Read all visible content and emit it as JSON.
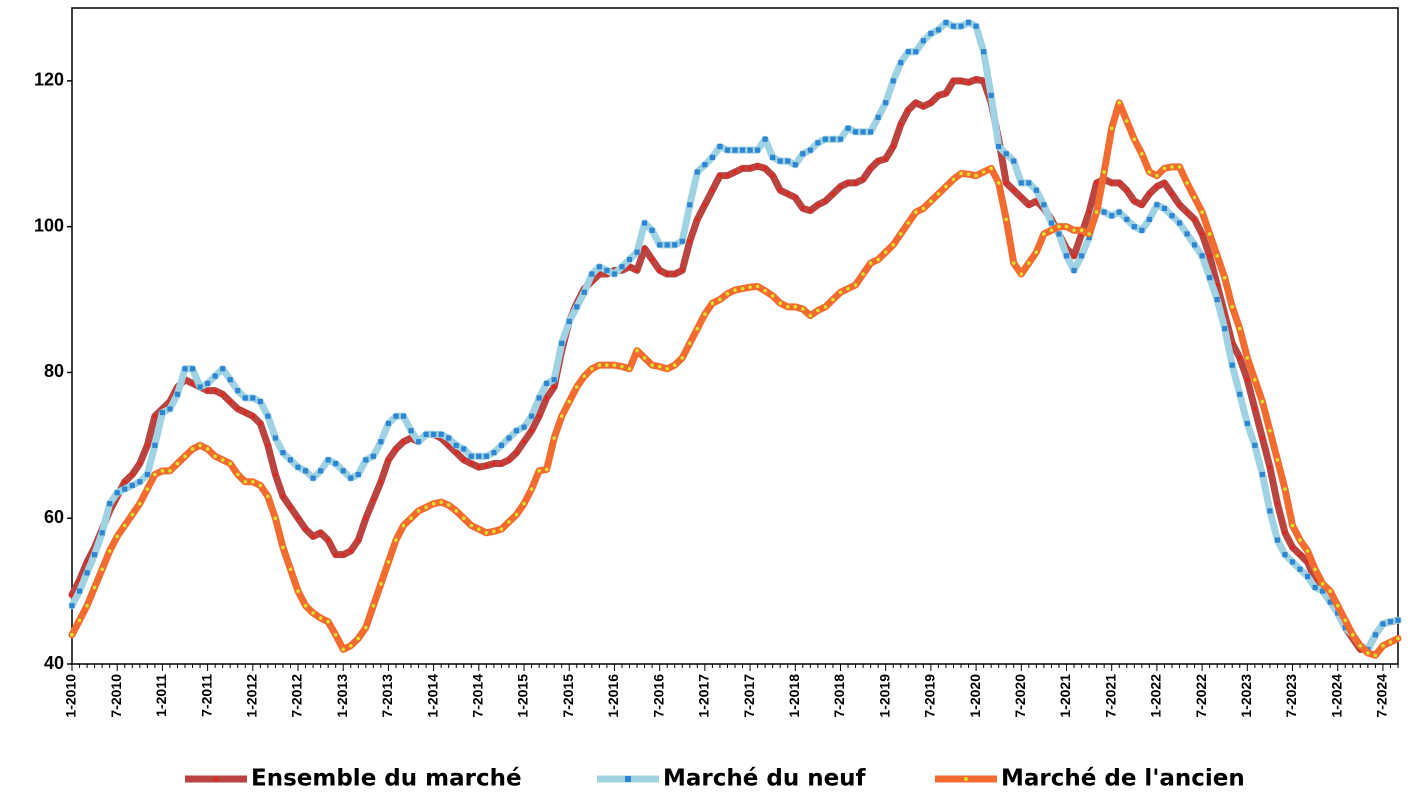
{
  "chart_data": {
    "type": "line",
    "categories": [
      "1-2010",
      null,
      null,
      null,
      null,
      null,
      "7-2010",
      null,
      null,
      null,
      null,
      null,
      "1-2011",
      null,
      null,
      null,
      null,
      null,
      "7-2011",
      null,
      null,
      null,
      null,
      null,
      "1-2012",
      null,
      null,
      null,
      null,
      null,
      "7-2012",
      null,
      null,
      null,
      null,
      null,
      "1-2013",
      null,
      null,
      null,
      null,
      null,
      "7-2013",
      null,
      null,
      null,
      null,
      null,
      "1-2014",
      null,
      null,
      null,
      null,
      null,
      "7-2014",
      null,
      null,
      null,
      null,
      null,
      "1-2015",
      null,
      null,
      null,
      null,
      null,
      "7-2015",
      null,
      null,
      null,
      null,
      null,
      "1-2016",
      null,
      null,
      null,
      null,
      null,
      "7-2016",
      null,
      null,
      null,
      null,
      null,
      "1-2017",
      null,
      null,
      null,
      null,
      null,
      "7-2017",
      null,
      null,
      null,
      null,
      null,
      "1-2018",
      null,
      null,
      null,
      null,
      null,
      "7-2018",
      null,
      null,
      null,
      null,
      null,
      "1-2019",
      null,
      null,
      null,
      null,
      null,
      "7-2019",
      null,
      null,
      null,
      null,
      null,
      "1-2020",
      null,
      null,
      null,
      null,
      null,
      "7-2020",
      null,
      null,
      null,
      null,
      null,
      "1-2021",
      null,
      null,
      null,
      null,
      null,
      "7-2021",
      null,
      null,
      null,
      null,
      null,
      "1-2022",
      null,
      null,
      null,
      null,
      null,
      "7-2022",
      null,
      null,
      null,
      null,
      null,
      "1-2023",
      null,
      null,
      null,
      null,
      null,
      "7-2023",
      null,
      null,
      null,
      null,
      null,
      "1-2024",
      null,
      null,
      null,
      null,
      null,
      "7-2024",
      null,
      null
    ],
    "series": [
      {
        "name": "Ensemble du marché",
        "color": "#b94440",
        "marker": "circle",
        "marker_color": "#e3231c",
        "values": [
          49.5,
          51.5,
          54,
          56,
          58.5,
          61,
          63,
          65,
          66,
          67.5,
          70,
          74,
          75,
          76,
          78,
          79,
          78.5,
          78,
          77.5,
          77.5,
          77,
          76,
          75,
          74.5,
          74,
          73,
          70,
          66,
          63,
          61.5,
          60,
          58.5,
          57.5,
          58,
          57,
          55,
          55,
          55.5,
          57,
          60,
          62.5,
          65,
          68,
          69.5,
          70.5,
          71,
          70.5,
          71.5,
          71.5,
          71,
          70,
          69,
          68,
          67.5,
          67,
          67.2,
          67.5,
          67.5,
          68,
          69,
          70.5,
          72,
          74,
          76.5,
          78,
          83,
          87,
          89.5,
          91.5,
          92.5,
          93.5,
          93.5,
          94,
          94,
          94.5,
          94,
          97,
          95.5,
          94,
          93.5,
          93.5,
          94,
          98,
          101,
          103,
          105,
          107,
          107,
          107.5,
          108,
          108,
          108.3,
          108,
          107,
          105,
          104.5,
          104,
          102.5,
          102.2,
          103,
          103.5,
          104.5,
          105.5,
          106,
          106,
          106.5,
          108,
          109,
          109.3,
          111,
          114,
          116,
          117,
          116.5,
          117,
          118,
          118.3,
          120,
          120,
          119.8,
          120.2,
          120,
          117,
          112,
          106,
          105,
          104,
          103,
          103.5,
          102.5,
          101,
          99,
          97,
          96,
          99,
          102,
          106,
          106.5,
          106,
          106,
          105,
          103.5,
          103,
          104.5,
          105.5,
          106,
          104.5,
          103,
          102,
          101,
          99,
          96,
          92,
          88,
          84,
          82,
          79,
          75,
          71,
          67,
          62,
          58,
          56,
          55,
          54,
          51.5,
          50.5,
          49,
          47,
          45,
          43.5,
          42,
          42,
          44,
          45.5,
          45.8,
          46
        ]
      },
      {
        "name": "Marché du neuf",
        "color": "#9fd3e3",
        "marker": "square",
        "marker_color": "#2f86d0",
        "values": [
          48,
          50,
          52.5,
          55,
          58,
          62,
          63.5,
          64,
          64.5,
          65,
          66,
          70,
          74.5,
          75,
          77,
          80.5,
          80.5,
          78,
          78.5,
          79.5,
          80.5,
          79,
          77.5,
          76.5,
          76.5,
          76,
          74,
          71,
          69,
          68,
          67,
          66.5,
          65.5,
          66.5,
          68,
          67.5,
          66.5,
          65.5,
          66,
          68,
          68.5,
          70.5,
          73,
          74,
          74,
          72,
          70.5,
          71.5,
          71.5,
          71.5,
          71,
          70,
          69.5,
          68.5,
          68.5,
          68.5,
          69,
          70,
          71,
          72,
          72.5,
          74,
          76.5,
          78.5,
          79,
          84,
          87,
          89,
          91,
          93.5,
          94.5,
          94,
          93.5,
          94.5,
          95.5,
          96.5,
          100.5,
          99.5,
          97.5,
          97.5,
          97.5,
          98,
          103,
          107.5,
          108.5,
          109.5,
          111,
          110.5,
          110.5,
          110.5,
          110.5,
          110.5,
          112,
          109.5,
          109,
          109,
          108.5,
          110,
          110.5,
          111.5,
          112,
          112,
          112,
          113.5,
          113,
          113,
          113,
          115,
          117,
          120,
          122.5,
          124,
          124,
          125.5,
          126.5,
          127,
          128,
          127.5,
          127.5,
          128,
          127.5,
          124,
          118,
          111,
          110,
          109,
          106,
          106,
          105,
          103,
          100.5,
          99,
          96,
          94,
          96,
          98.5,
          102.5,
          102,
          101.5,
          102,
          101,
          100,
          99.5,
          101,
          103,
          102.5,
          101.5,
          100.5,
          99,
          97.5,
          96,
          93,
          90,
          86,
          81,
          77,
          73,
          70,
          66,
          61,
          57,
          55,
          54,
          53,
          52,
          50.5,
          50,
          48.5,
          47,
          45,
          44,
          42.5,
          42,
          44,
          45.5,
          45.8,
          46
        ]
      },
      {
        "name": "Marché de l'ancien",
        "color": "#f26b2f",
        "marker": "circle",
        "marker_color": "#d8e32c",
        "values": [
          44,
          46,
          48,
          50.5,
          53,
          55.5,
          57.5,
          59,
          60.5,
          62,
          64,
          66,
          66.5,
          66.5,
          67.5,
          68.5,
          69.5,
          70,
          69.5,
          68.5,
          68,
          67.5,
          66,
          65,
          65,
          64.5,
          63,
          60,
          56,
          53,
          50,
          48,
          47,
          46.3,
          45.8,
          44,
          42,
          42.5,
          43.5,
          45,
          48,
          51,
          54,
          57,
          59,
          60,
          61,
          61.5,
          62,
          62.2,
          61.8,
          61,
          60,
          59,
          58.5,
          58,
          58.2,
          58.5,
          59.5,
          60.5,
          62,
          64,
          66.5,
          66.7,
          71,
          74,
          76,
          78,
          79.5,
          80.5,
          81,
          81,
          81,
          80.8,
          80.5,
          83,
          82,
          81,
          80.8,
          80.5,
          81,
          82,
          84,
          86,
          88,
          89.5,
          90,
          90.8,
          91.3,
          91.5,
          91.7,
          91.8,
          91.2,
          90.5,
          89.5,
          89,
          89,
          88.7,
          87.8,
          88.5,
          89,
          90,
          91,
          91.5,
          92,
          93.5,
          95,
          95.5,
          96.5,
          97.5,
          99,
          100.5,
          102,
          102.5,
          103.5,
          104.5,
          105.5,
          106.5,
          107.3,
          107.2,
          107,
          107.5,
          108,
          106,
          101,
          95,
          93.5,
          95,
          96.5,
          99,
          99.5,
          100,
          100,
          99.5,
          99.5,
          99,
          102,
          107.5,
          113.5,
          117,
          114.5,
          112,
          110,
          107.5,
          107,
          108,
          108.2,
          108.2,
          106,
          104,
          102,
          99,
          96,
          93,
          89,
          86,
          82,
          79,
          76,
          72,
          68,
          64,
          59,
          57,
          55.5,
          53,
          51,
          50,
          48,
          46,
          44,
          42.5,
          41.5,
          41.2,
          42.5,
          43,
          43.5
        ]
      }
    ],
    "ylim": [
      40,
      130
    ],
    "yticks": [
      40,
      60,
      80,
      100,
      120
    ],
    "grid": false,
    "legend": "bottom"
  }
}
